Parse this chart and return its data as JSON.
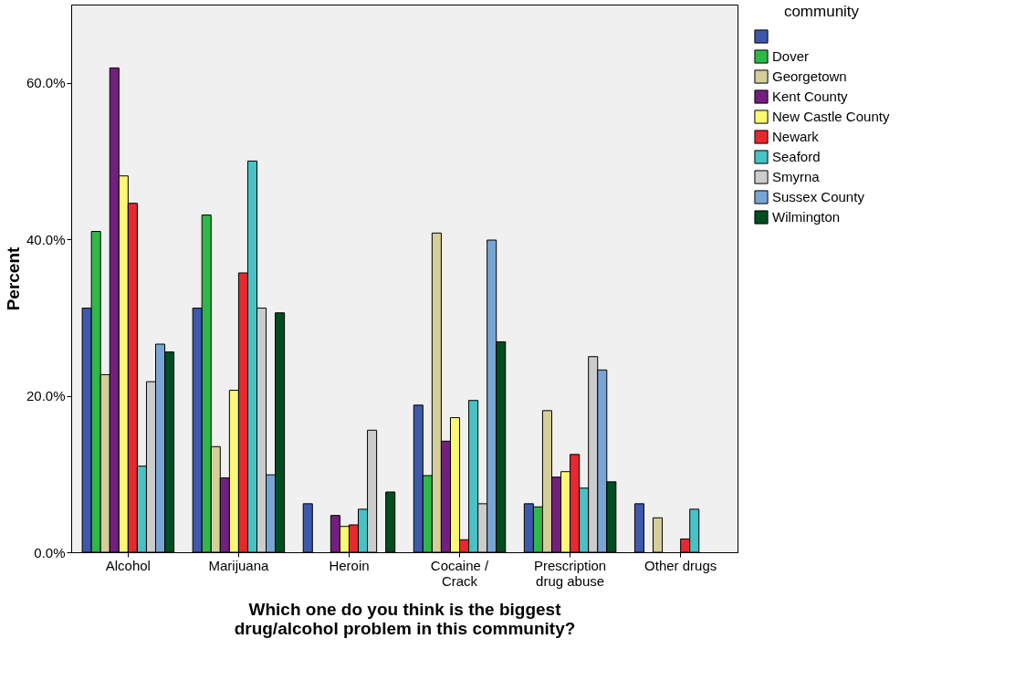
{
  "chart_data": {
    "type": "bar",
    "xlabel": "Which one do you think is the biggest\ndrug/alcohol problem in this community?",
    "ylabel": "Percent",
    "legend_title": "community",
    "legend": "top right",
    "grid": false,
    "categories": [
      "Alcohol",
      "Marijuana",
      "Heroin",
      "Cocaine /\nCrack",
      "Prescription\ndrug abuse",
      "Other drugs"
    ],
    "ylim": [
      0,
      70
    ],
    "yticks": [
      {
        "value": 0,
        "label": "0.0%"
      },
      {
        "value": 20,
        "label": "20.0%"
      },
      {
        "value": 40,
        "label": "40.0%"
      },
      {
        "value": 60,
        "label": "60.0%"
      }
    ],
    "series": [
      {
        "color": "#3e58ac",
        "values": [
          31.2,
          31.2,
          6.2,
          18.8,
          6.2,
          6.2
        ]
      },
      {
        "name": "Dover",
        "color": "#2eb848",
        "values": [
          41.0,
          43.1,
          null,
          9.8,
          5.8,
          null
        ]
      },
      {
        "name": "Georgetown",
        "color": "#d4ce98",
        "values": [
          22.7,
          13.5,
          null,
          40.8,
          18.1,
          4.4
        ]
      },
      {
        "name": "Kent County",
        "color": "#731f7f",
        "values": [
          61.9,
          9.5,
          4.7,
          14.2,
          9.6,
          null
        ]
      },
      {
        "name": "New Castle County",
        "color": "#fbf873",
        "values": [
          48.1,
          20.7,
          3.3,
          17.2,
          10.3,
          null
        ]
      },
      {
        "name": "Newark",
        "color": "#e8282f",
        "values": [
          44.6,
          35.7,
          3.5,
          1.6,
          12.5,
          1.7
        ]
      },
      {
        "name": "Seaford",
        "color": "#48c2c5",
        "values": [
          11.0,
          50.0,
          5.5,
          19.4,
          8.2,
          5.5
        ]
      },
      {
        "name": "Smyrna",
        "color": "#cccccc",
        "values": [
          21.8,
          31.2,
          15.6,
          6.2,
          25.0,
          null
        ]
      },
      {
        "name": "Sussex County",
        "color": "#79a5d5",
        "values": [
          26.6,
          9.9,
          null,
          39.9,
          23.3,
          null
        ]
      },
      {
        "name": "Wilmington",
        "color": "#024d1f",
        "values": [
          25.6,
          30.6,
          7.7,
          26.9,
          9.0,
          null
        ]
      }
    ]
  }
}
